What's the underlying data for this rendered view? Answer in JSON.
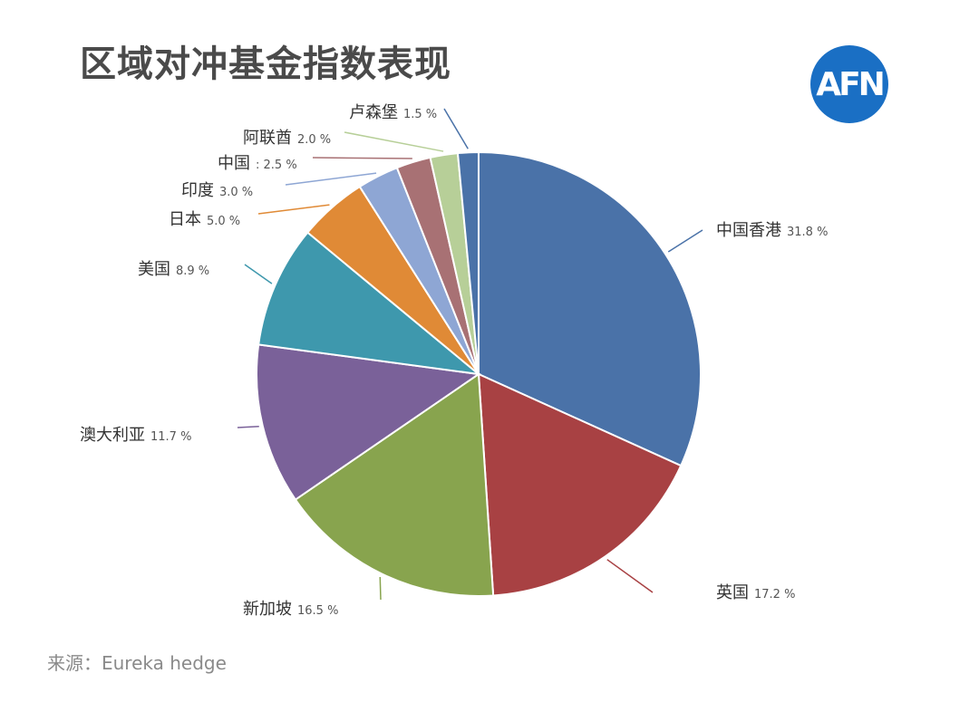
{
  "header": {
    "title": "区域对冲基金指数表现",
    "logo_text": "AFN"
  },
  "source": "来源：Eureka hedge",
  "colors": {
    "中国香港": "#4a72a8",
    "英国": "#a84143",
    "新加坡": "#88a44e",
    "澳大利亚": "#7a6199",
    "美国": "#3e98ad",
    "日本": "#e08a36",
    "印度": "#8ea6d4",
    "中国": "#a87174",
    "阿联酋": "#b7cf98",
    "卢森堡": "#4a72a8"
  },
  "chart_data": {
    "type": "pie",
    "title": "区域对冲基金指数表现",
    "categories": [
      "中国香港",
      "英国",
      "新加坡",
      "澳大利亚",
      "美国",
      "日本",
      "印度",
      "中国",
      "阿联酋",
      "卢森堡"
    ],
    "values": [
      31.8,
      17.2,
      16.5,
      11.7,
      8.9,
      5.0,
      3.0,
      2.5,
      2.0,
      1.5
    ],
    "value_labels": [
      "31.8 %",
      "17.2 %",
      "16.5 %",
      "11.7 %",
      "8.9 %",
      "5.0 %",
      "3.0 %",
      ": 2.5 %",
      "2.0 %",
      "1.5 %"
    ],
    "start_angle_deg": 0,
    "direction": "clockwise"
  }
}
